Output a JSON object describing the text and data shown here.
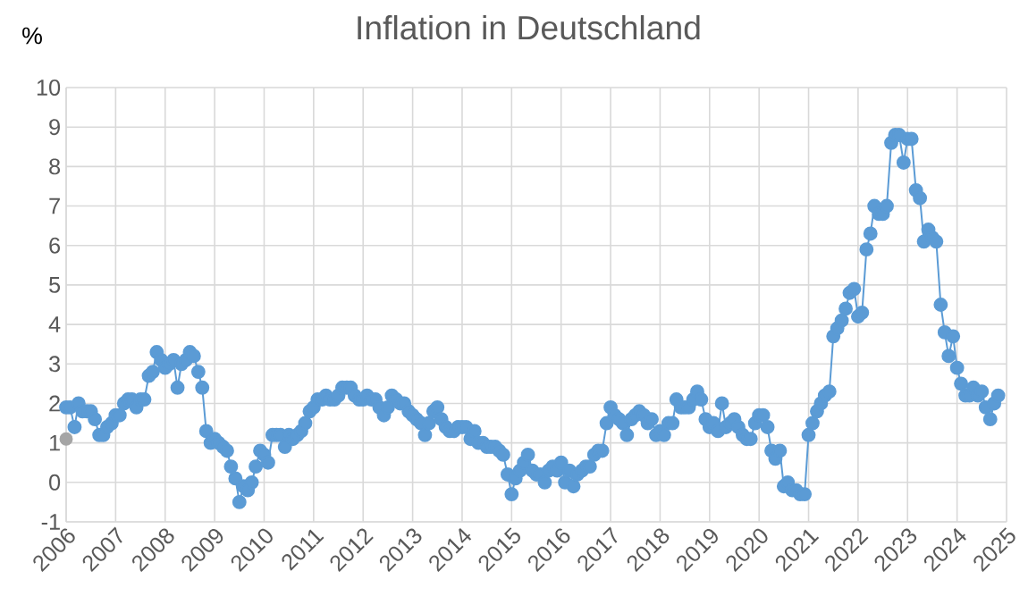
{
  "chart_data": {
    "type": "line",
    "title": "Inflation in Deutschland",
    "ylabel": "%",
    "xlim": [
      "2006",
      "2025"
    ],
    "xticks": [
      "2006",
      "2007",
      "2008",
      "2009",
      "2010",
      "2011",
      "2012",
      "2013",
      "2014",
      "2015",
      "2016",
      "2017",
      "2018",
      "2019",
      "2020",
      "2021",
      "2022",
      "2023",
      "2024",
      "2025"
    ],
    "ylim": [
      -1,
      10
    ],
    "yticks": [
      -1,
      0,
      1,
      2,
      3,
      4,
      5,
      6,
      7,
      8,
      9,
      10
    ],
    "grid": true,
    "marker": "circle",
    "line_style": "solid",
    "series": [
      {
        "color": "#5b9bd5",
        "x": [
          "2006-01",
          "2006-02",
          "2006-03",
          "2006-04",
          "2006-05",
          "2006-06",
          "2006-07",
          "2006-08",
          "2006-09",
          "2006-10",
          "2006-11",
          "2006-12",
          "2007-01",
          "2007-02",
          "2007-03",
          "2007-04",
          "2007-05",
          "2007-06",
          "2007-07",
          "2007-08",
          "2007-09",
          "2007-10",
          "2007-11",
          "2007-12",
          "2008-01",
          "2008-02",
          "2008-03",
          "2008-04",
          "2008-05",
          "2008-06",
          "2008-07",
          "2008-08",
          "2008-09",
          "2008-10",
          "2008-11",
          "2008-12",
          "2009-01",
          "2009-02",
          "2009-03",
          "2009-04",
          "2009-05",
          "2009-06",
          "2009-07",
          "2009-08",
          "2009-09",
          "2009-10",
          "2009-11",
          "2009-12",
          "2010-01",
          "2010-02",
          "2010-03",
          "2010-04",
          "2010-05",
          "2010-06",
          "2010-07",
          "2010-08",
          "2010-09",
          "2010-10",
          "2010-11",
          "2010-12",
          "2011-01",
          "2011-02",
          "2011-03",
          "2011-04",
          "2011-05",
          "2011-06",
          "2011-07",
          "2011-08",
          "2011-09",
          "2011-10",
          "2011-11",
          "2011-12",
          "2012-01",
          "2012-02",
          "2012-03",
          "2012-04",
          "2012-05",
          "2012-06",
          "2012-07",
          "2012-08",
          "2012-09",
          "2012-10",
          "2012-11",
          "2012-12",
          "2013-01",
          "2013-02",
          "2013-03",
          "2013-04",
          "2013-05",
          "2013-06",
          "2013-07",
          "2013-08",
          "2013-09",
          "2013-10",
          "2013-11",
          "2013-12",
          "2014-01",
          "2014-02",
          "2014-03",
          "2014-04",
          "2014-05",
          "2014-06",
          "2014-07",
          "2014-08",
          "2014-09",
          "2014-10",
          "2014-11",
          "2014-12",
          "2015-01",
          "2015-02",
          "2015-03",
          "2015-04",
          "2015-05",
          "2015-06",
          "2015-07",
          "2015-08",
          "2015-09",
          "2015-10",
          "2015-11",
          "2015-12",
          "2016-01",
          "2016-02",
          "2016-03",
          "2016-04",
          "2016-05",
          "2016-06",
          "2016-07",
          "2016-08",
          "2016-09",
          "2016-10",
          "2016-11",
          "2016-12",
          "2017-01",
          "2017-02",
          "2017-03",
          "2017-04",
          "2017-05",
          "2017-06",
          "2017-07",
          "2017-08",
          "2017-09",
          "2017-10",
          "2017-11",
          "2017-12",
          "2018-01",
          "2018-02",
          "2018-03",
          "2018-04",
          "2018-05",
          "2018-06",
          "2018-07",
          "2018-08",
          "2018-09",
          "2018-10",
          "2018-11",
          "2018-12",
          "2019-01",
          "2019-02",
          "2019-03",
          "2019-04",
          "2019-05",
          "2019-06",
          "2019-07",
          "2019-08",
          "2019-09",
          "2019-10",
          "2019-11",
          "2019-12",
          "2020-01",
          "2020-02",
          "2020-03",
          "2020-04",
          "2020-05",
          "2020-06",
          "2020-07",
          "2020-08",
          "2020-09",
          "2020-10",
          "2020-11",
          "2020-12",
          "2021-01",
          "2021-02",
          "2021-03",
          "2021-04",
          "2021-05",
          "2021-06",
          "2021-07",
          "2021-08",
          "2021-09",
          "2021-10",
          "2021-11",
          "2021-12",
          "2022-01",
          "2022-02",
          "2022-03",
          "2022-04",
          "2022-05",
          "2022-06",
          "2022-07",
          "2022-08",
          "2022-09",
          "2022-10",
          "2022-11",
          "2022-12",
          "2023-01",
          "2023-02",
          "2023-03",
          "2023-04",
          "2023-05",
          "2023-06",
          "2023-07",
          "2023-08",
          "2023-09",
          "2023-10",
          "2023-11",
          "2023-12",
          "2024-01",
          "2024-02",
          "2024-03",
          "2024-04",
          "2024-05",
          "2024-06",
          "2024-07",
          "2024-08",
          "2024-09",
          "2024-10",
          "2024-11"
        ],
        "values": [
          1.9,
          1.9,
          1.4,
          2.0,
          1.8,
          1.8,
          1.8,
          1.6,
          1.2,
          1.2,
          1.4,
          1.5,
          1.7,
          1.7,
          2.0,
          2.1,
          2.1,
          1.9,
          2.1,
          2.1,
          2.7,
          2.8,
          3.3,
          3.1,
          2.9,
          3.0,
          3.1,
          2.4,
          3.0,
          3.1,
          3.3,
          3.2,
          2.8,
          2.4,
          1.3,
          1.0,
          1.1,
          1.0,
          0.9,
          0.8,
          0.4,
          0.1,
          -0.5,
          -0.1,
          -0.2,
          0.0,
          0.4,
          0.8,
          0.7,
          0.5,
          1.2,
          1.2,
          1.2,
          0.9,
          1.2,
          1.1,
          1.2,
          1.3,
          1.5,
          1.8,
          1.9,
          2.1,
          2.1,
          2.2,
          2.1,
          2.1,
          2.2,
          2.4,
          2.4,
          2.4,
          2.2,
          2.1,
          2.1,
          2.2,
          2.1,
          2.1,
          1.9,
          1.7,
          1.9,
          2.2,
          2.1,
          2.0,
          2.0,
          1.8,
          1.7,
          1.6,
          1.5,
          1.2,
          1.5,
          1.8,
          1.9,
          1.6,
          1.4,
          1.3,
          1.3,
          1.4,
          1.4,
          1.4,
          1.1,
          1.3,
          1.0,
          1.0,
          0.9,
          0.9,
          0.9,
          0.8,
          0.7,
          0.2,
          -0.3,
          0.1,
          0.3,
          0.5,
          0.7,
          0.3,
          0.2,
          0.2,
          0.0,
          0.3,
          0.4,
          0.3,
          0.5,
          0.0,
          0.3,
          -0.1,
          0.2,
          0.3,
          0.4,
          0.4,
          0.7,
          0.8,
          0.8,
          1.5,
          1.9,
          1.7,
          1.6,
          1.5,
          1.2,
          1.6,
          1.7,
          1.8,
          1.7,
          1.5,
          1.6,
          1.2,
          1.3,
          1.2,
          1.5,
          1.5,
          2.1,
          1.9,
          1.9,
          1.9,
          2.1,
          2.3,
          2.1,
          1.6,
          1.4,
          1.5,
          1.3,
          2.0,
          1.4,
          1.5,
          1.6,
          1.4,
          1.2,
          1.1,
          1.1,
          1.5,
          1.7,
          1.7,
          1.4,
          0.8,
          0.6,
          0.8,
          -0.1,
          0.0,
          -0.2,
          -0.2,
          -0.3,
          -0.3,
          1.2,
          1.5,
          1.8,
          2.0,
          2.2,
          2.3,
          3.7,
          3.9,
          4.1,
          4.4,
          4.8,
          4.9,
          4.2,
          4.3,
          5.9,
          6.3,
          7.0,
          6.8,
          6.8,
          7.0,
          8.6,
          8.8,
          8.8,
          8.1,
          8.7,
          8.7,
          7.4,
          7.2,
          6.1,
          6.4,
          6.2,
          6.1,
          4.5,
          3.8,
          3.2,
          3.7,
          2.9,
          2.5,
          2.2,
          2.2,
          2.4,
          2.2,
          2.3,
          1.9,
          1.6,
          2.0,
          2.2
        ]
      },
      {
        "type": "scatter",
        "color": "#a5a5a5",
        "x": [
          "2006-01"
        ],
        "values": [
          1.1
        ]
      }
    ]
  }
}
